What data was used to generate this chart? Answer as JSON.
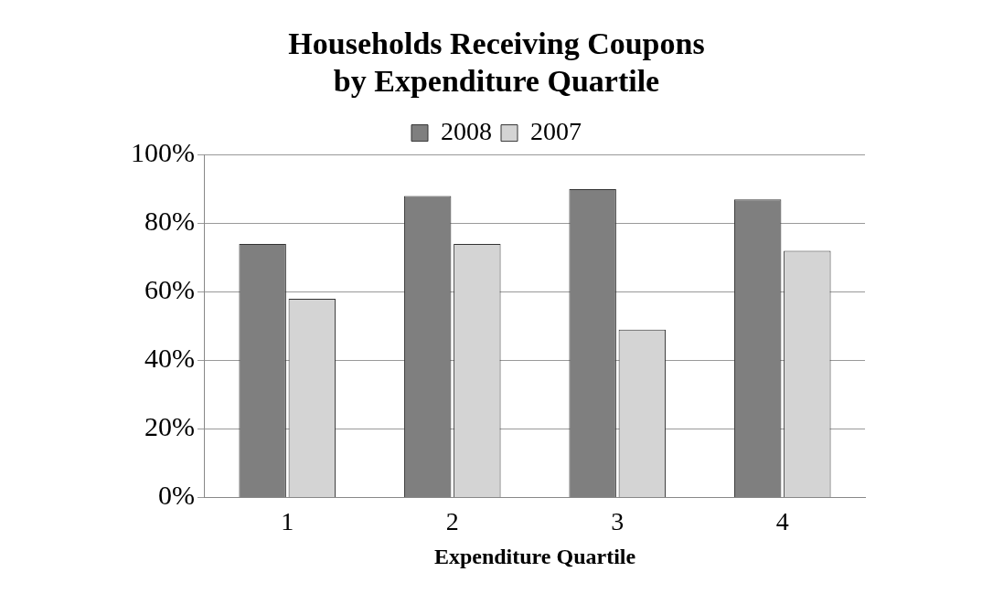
{
  "chart_data": {
    "type": "bar",
    "title": [
      "Households Receiving Coupons",
      "by Expenditure Quartile"
    ],
    "xlabel": "Expenditure Quartile",
    "categories": [
      "1",
      "2",
      "3",
      "4"
    ],
    "series": [
      {
        "name": "2008",
        "color": "#7f7f7f",
        "values": [
          74,
          88,
          90,
          87
        ]
      },
      {
        "name": "2007",
        "color": "#d4d4d4",
        "values": [
          58,
          74,
          49,
          72
        ]
      }
    ],
    "ylim": [
      0,
      100
    ],
    "yticks": [
      {
        "value": 0,
        "label": "0%"
      },
      {
        "value": 20,
        "label": "20%"
      },
      {
        "value": 40,
        "label": "40%"
      },
      {
        "value": 60,
        "label": "60%"
      },
      {
        "value": 80,
        "label": "80%"
      },
      {
        "value": 100,
        "label": "100%"
      }
    ],
    "grid": "y",
    "legend": "top"
  }
}
